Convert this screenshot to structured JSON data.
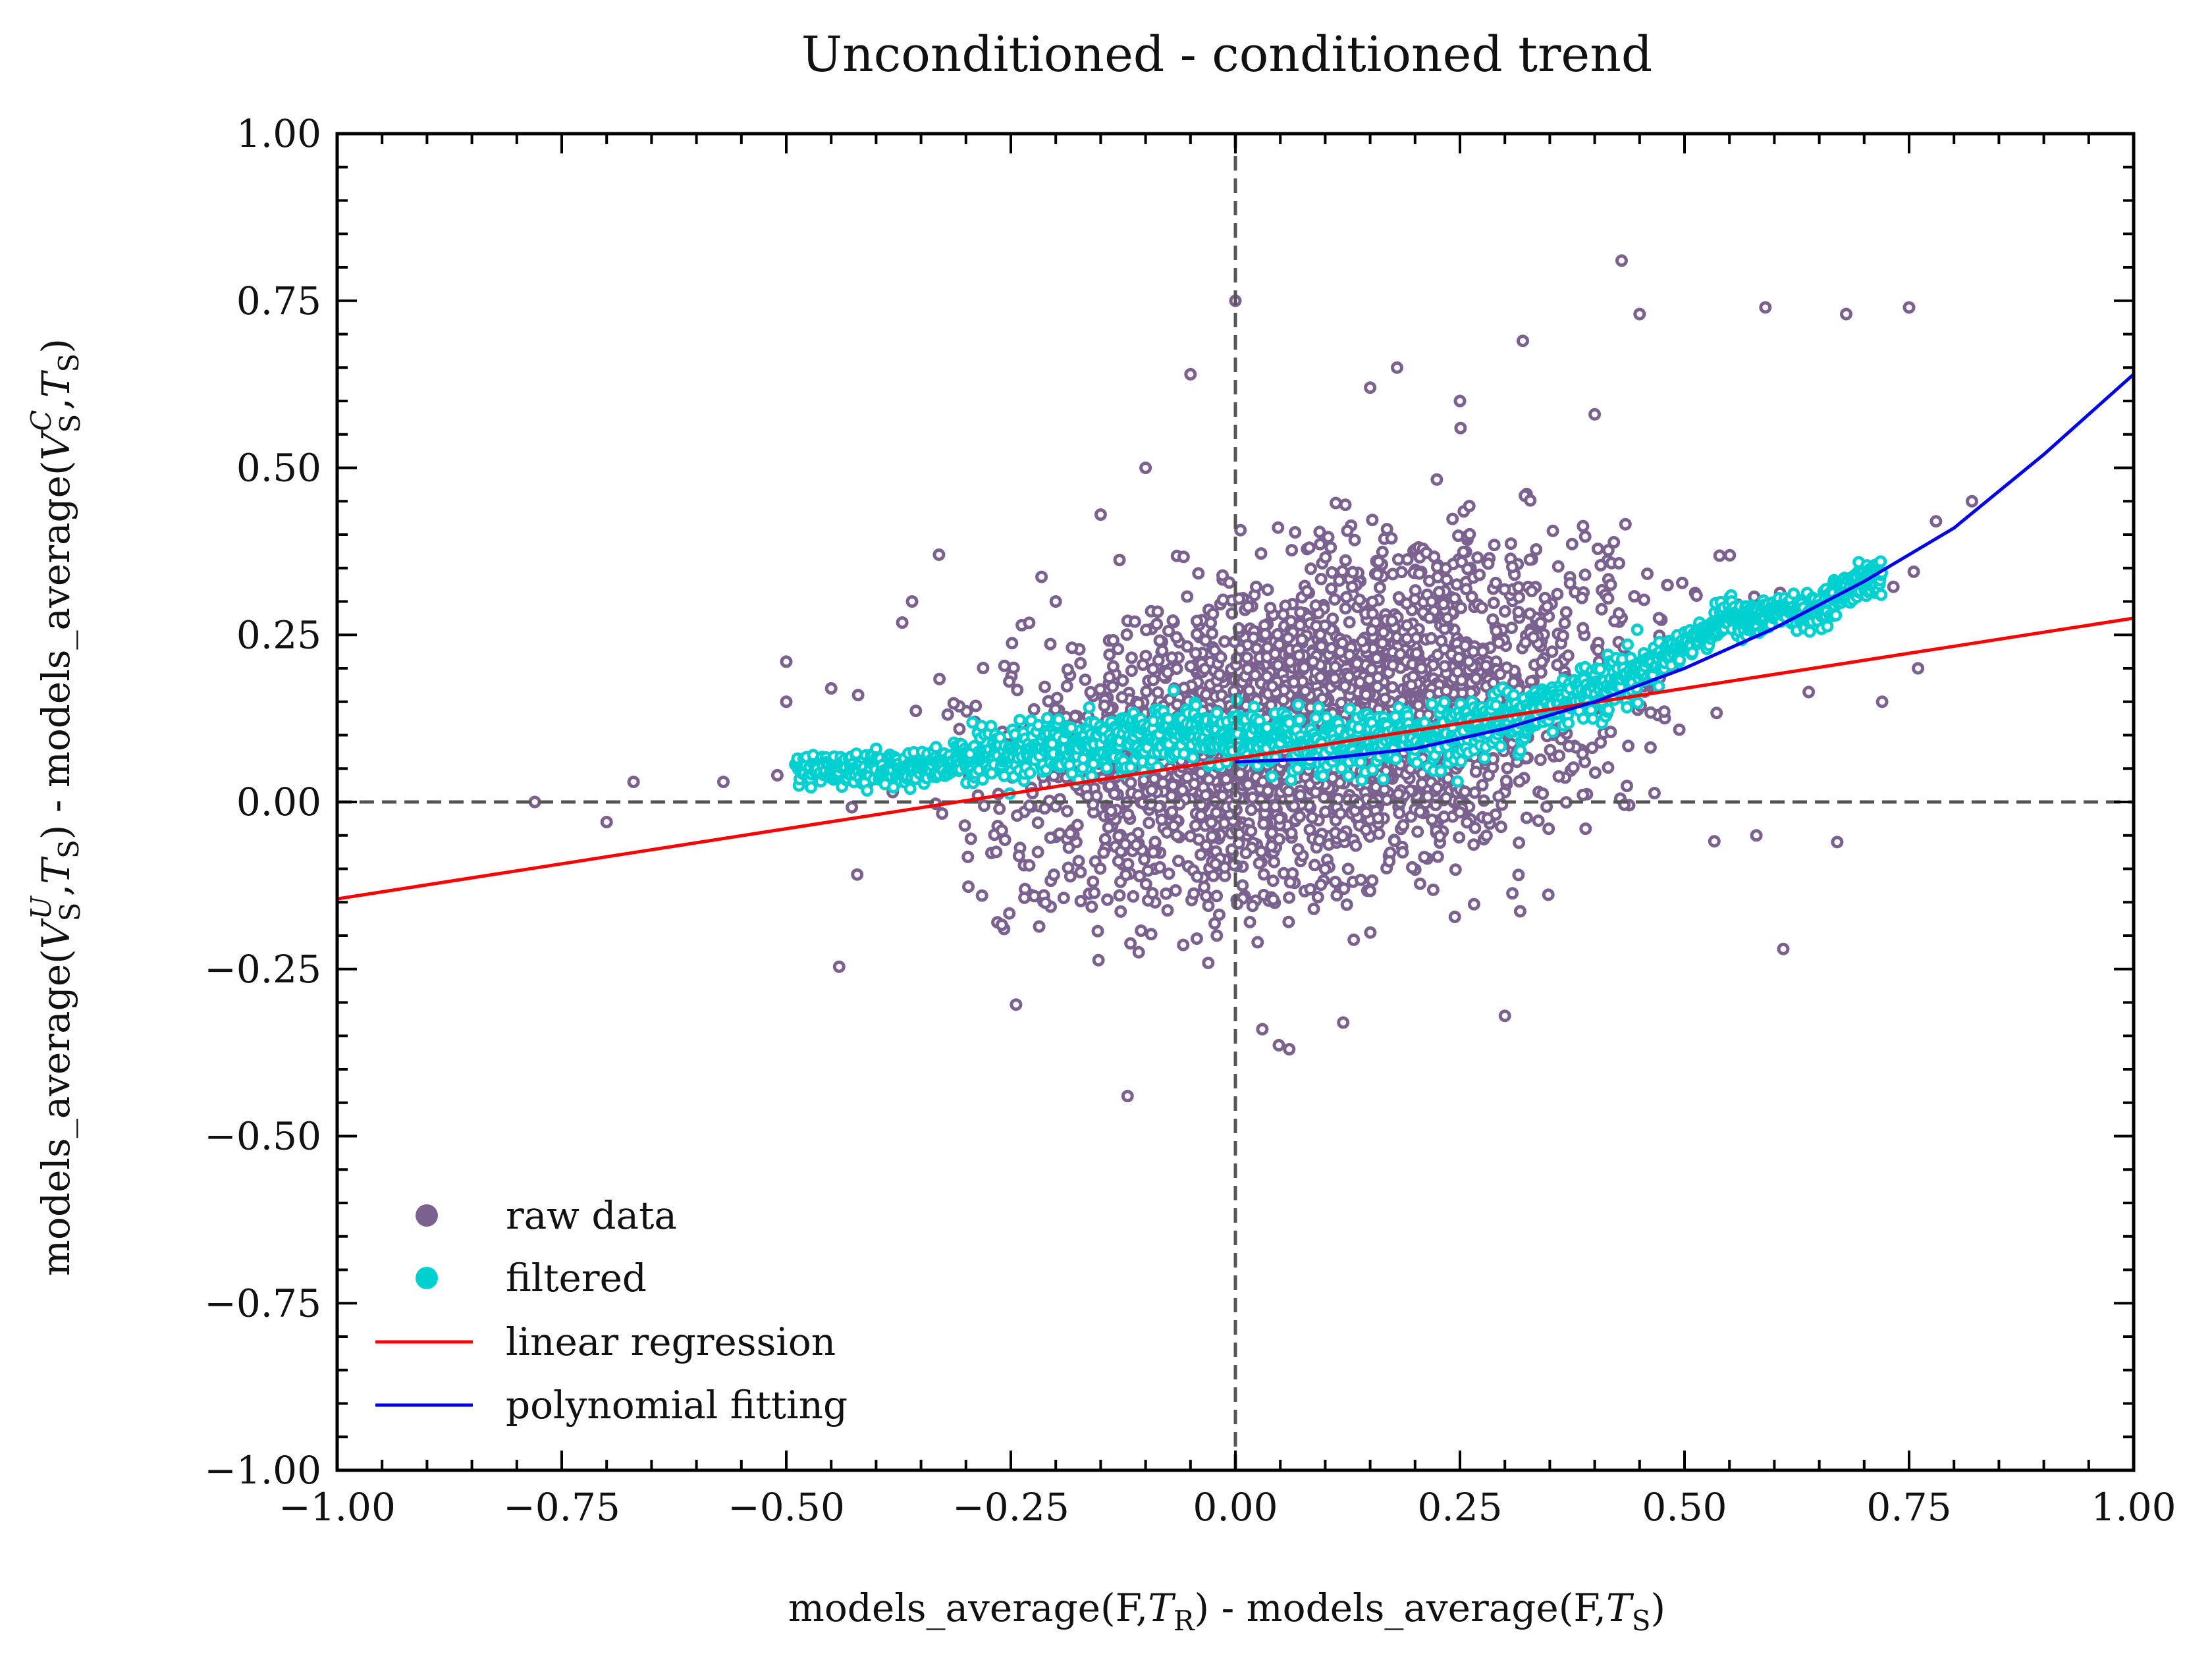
{
  "chart_data": {
    "type": "scatter",
    "title": "Unconditioned - conditioned trend",
    "xlabel": "models_average(F,T_R) - models_average(F,T_S)",
    "ylabel": "models_average(V_S^U,T_S) - models_average(V_S^C,T_S)",
    "xlim": [
      -1.0,
      1.0
    ],
    "ylim": [
      -1.0,
      1.0
    ],
    "xticks": [
      -1.0,
      -0.75,
      -0.5,
      -0.25,
      0.0,
      0.25,
      0.5,
      0.75,
      1.0
    ],
    "yticks": [
      -1.0,
      -0.75,
      -0.5,
      -0.25,
      0.0,
      0.25,
      0.5,
      0.75,
      1.0
    ],
    "xtick_labels": [
      "−1.00",
      "−0.75",
      "−0.50",
      "−0.25",
      "0.00",
      "0.25",
      "0.50",
      "0.75",
      "1.00"
    ],
    "ytick_labels": [
      "−1.00",
      "−0.75",
      "−0.50",
      "−0.25",
      "0.00",
      "0.25",
      "0.50",
      "0.75",
      "1.00"
    ],
    "grid": false,
    "reference_lines": {
      "vertical_x": 0.0,
      "horizontal_y": 0.0,
      "style": "dashed",
      "color": "#555555"
    },
    "legend_position": "lower-left",
    "series": [
      {
        "name": "raw data",
        "kind": "scatter",
        "color": "#7a6190",
        "description_points": [
          [
            0.43,
            0.81
          ],
          [
            0.75,
            0.74
          ],
          [
            0.59,
            0.74
          ],
          [
            0.68,
            0.73
          ],
          [
            0.45,
            0.73
          ],
          [
            -0.12,
            -0.44
          ],
          [
            0.61,
            -0.22
          ],
          [
            -0.78,
            0.0
          ],
          [
            -0.7,
            -0.03
          ],
          [
            -0.67,
            0.03
          ],
          [
            -0.57,
            0.03
          ],
          [
            -0.51,
            0.04
          ],
          [
            -0.5,
            0.21
          ],
          [
            -0.5,
            0.15
          ],
          [
            -0.45,
            0.17
          ],
          [
            -0.42,
            0.16
          ],
          [
            -0.36,
            0.3
          ],
          [
            -0.33,
            0.37
          ],
          [
            -0.29,
            0.12
          ],
          [
            0.03,
            -0.34
          ],
          [
            0.06,
            -0.37
          ],
          [
            0.12,
            -0.33
          ],
          [
            0.3,
            -0.32
          ],
          [
            0.67,
            -0.06
          ],
          [
            0.7,
            0.35
          ],
          [
            0.78,
            0.42
          ],
          [
            0.82,
            0.45
          ],
          [
            0.76,
            0.2
          ],
          [
            0.72,
            0.15
          ],
          [
            0.58,
            -0.05
          ],
          [
            -0.2,
            0.3
          ],
          [
            -0.15,
            0.43
          ],
          [
            -0.1,
            0.5
          ],
          [
            0.32,
            0.69
          ],
          [
            0.18,
            0.65
          ],
          [
            -0.05,
            0.64
          ],
          [
            0.0,
            0.75
          ],
          [
            0.15,
            0.62
          ],
          [
            0.25,
            0.6
          ],
          [
            0.4,
            0.58
          ]
        ]
      },
      {
        "name": "filtered",
        "kind": "scatter",
        "color": "#00d0d0",
        "trend_points": [
          [
            -0.49,
            0.05
          ],
          [
            -0.44,
            0.05
          ],
          [
            -0.4,
            0.05
          ],
          [
            -0.36,
            0.05
          ],
          [
            -0.32,
            0.06
          ],
          [
            -0.28,
            0.07
          ],
          [
            -0.24,
            0.08
          ],
          [
            -0.2,
            0.08
          ],
          [
            -0.16,
            0.09
          ],
          [
            -0.12,
            0.09
          ],
          [
            -0.08,
            0.1
          ],
          [
            -0.04,
            0.1
          ],
          [
            0.0,
            0.1
          ],
          [
            0.04,
            0.09
          ],
          [
            0.08,
            0.08
          ],
          [
            0.12,
            0.08
          ],
          [
            0.16,
            0.09
          ],
          [
            0.2,
            0.1
          ],
          [
            0.24,
            0.1
          ],
          [
            0.28,
            0.12
          ],
          [
            0.32,
            0.13
          ],
          [
            0.36,
            0.15
          ],
          [
            0.4,
            0.17
          ],
          [
            0.44,
            0.19
          ],
          [
            0.48,
            0.22
          ],
          [
            0.52,
            0.25
          ],
          [
            0.55,
            0.28
          ],
          [
            0.58,
            0.27
          ],
          [
            0.61,
            0.29
          ],
          [
            0.64,
            0.28
          ],
          [
            0.67,
            0.31
          ],
          [
            0.7,
            0.33
          ],
          [
            0.72,
            0.34
          ]
        ]
      },
      {
        "name": "linear regression",
        "kind": "line",
        "color": "#ff0000",
        "x": [
          -1.0,
          1.0
        ],
        "y": [
          -0.145,
          0.275
        ]
      },
      {
        "name": "polynomial fitting",
        "kind": "line",
        "color": "#0000ee",
        "x": [
          0.0,
          0.1,
          0.2,
          0.3,
          0.4,
          0.5,
          0.6,
          0.7,
          0.8,
          0.9,
          1.0
        ],
        "y": [
          0.06,
          0.065,
          0.08,
          0.11,
          0.15,
          0.2,
          0.26,
          0.33,
          0.41,
          0.52,
          0.64
        ]
      }
    ]
  }
}
